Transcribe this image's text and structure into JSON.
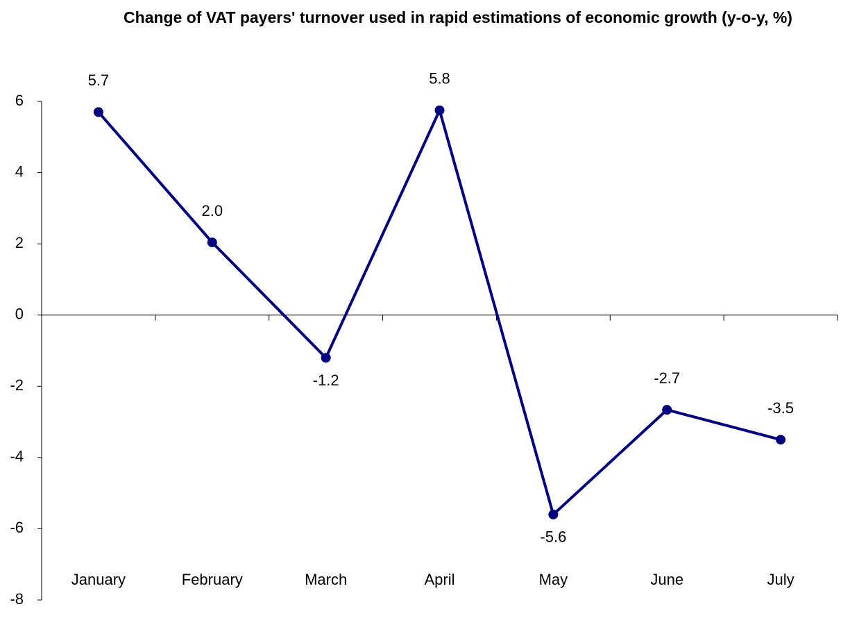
{
  "chart_data": {
    "type": "line",
    "title": "Change of VAT payers' turnover used in rapid estimations of economic growth (y-o-y, %)",
    "categories": [
      "January",
      "February",
      "March",
      "April",
      "May",
      "June",
      "July"
    ],
    "series": [
      {
        "color": "#000080",
        "values": [
          5.7,
          2.04,
          -1.2,
          5.75,
          -5.6,
          -2.66,
          -3.5
        ],
        "value_labels": [
          "5.7",
          "2.0",
          "-1.2",
          "5.8",
          "-5.6",
          "-2.7",
          "-3.5"
        ]
      }
    ],
    "ylim": [
      -8,
      6
    ],
    "yticks": [
      -8,
      -6,
      -4,
      -2,
      0,
      2,
      4,
      6
    ],
    "grid": false
  }
}
